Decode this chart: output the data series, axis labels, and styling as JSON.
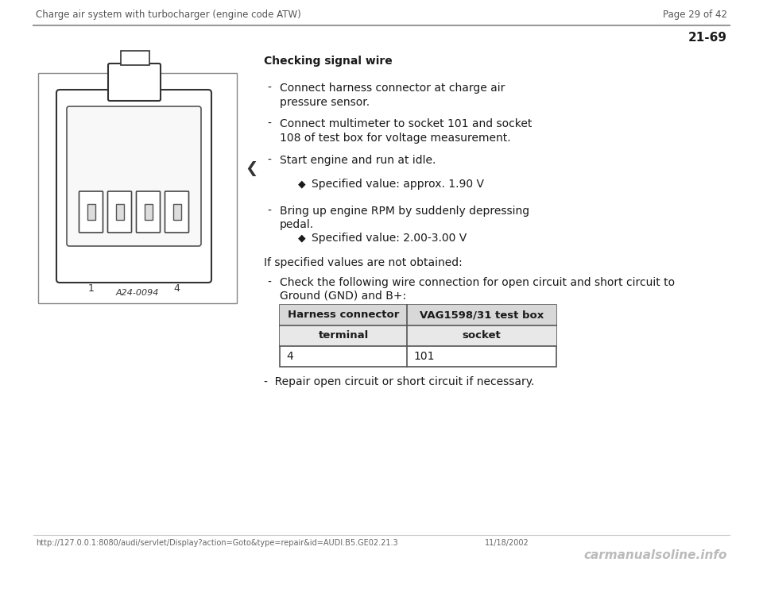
{
  "header_left": "Charge air system with turbocharger (engine code ATW)",
  "header_right": "Page 29 of 42",
  "page_number": "21-69",
  "section_title": "Checking signal wire",
  "bullet1": "Connect harness connector at charge air\npressure sensor.",
  "bullet2": "Connect multimeter to socket 101 and socket\n108 of test box for voltage measurement.",
  "bullet3": "Start engine and run at idle.",
  "sub_bullet1": "Specified value: approx. 1.90 V",
  "bullet4_line1": "Bring up engine RPM by suddenly depressing",
  "bullet4_line2": "pedal.",
  "sub_bullet2": "Specified value: 2.00-3.00 V",
  "if_statement": "If specified values are not obtained:",
  "check_line1": "Check the following wire connection for open circuit and short circuit to",
  "check_line2": "Ground (GND) and B+:",
  "table_h1": "Harness connector",
  "table_h2": "VAG1598/31 test box",
  "table_sh1": "terminal",
  "table_sh2": "socket",
  "table_d1": "4",
  "table_d2": "101",
  "repair_note": "-  Repair open circuit or short circuit if necessary.",
  "footer_url": "http://127.0.0.1:8080/audi/servlet/Display?action=Goto&type=repair&id=AUDI.B5.GE02.21.3",
  "footer_date": "11/18/2002",
  "footer_watermark": "carmanualsoline.info",
  "caption": "A24-0094"
}
